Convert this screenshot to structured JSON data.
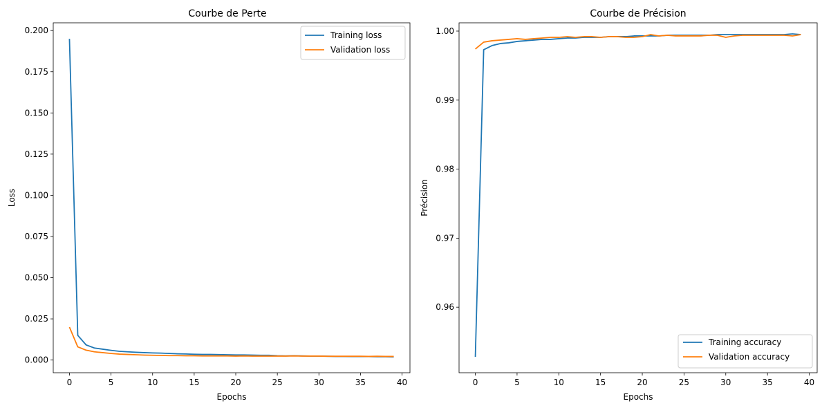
{
  "chart_data": [
    {
      "type": "line",
      "title": "Courbe de Perte",
      "xlabel": "Epochs",
      "ylabel": "Loss",
      "xlim": [
        -1.95,
        40.95
      ],
      "ylim": [
        -0.0077,
        0.2047
      ],
      "xticks": [
        0,
        5,
        10,
        15,
        20,
        25,
        30,
        35,
        40
      ],
      "yticks": [
        0.0,
        0.025,
        0.05,
        0.075,
        0.1,
        0.125,
        0.15,
        0.175,
        0.2
      ],
      "ytick_labels": [
        "0.000",
        "0.025",
        "0.050",
        "0.075",
        "0.100",
        "0.125",
        "0.150",
        "0.175",
        "0.200"
      ],
      "grid": false,
      "legend": "top-right",
      "series": [
        {
          "name": "Training loss",
          "color": "#1f77b4",
          "values": [
            0.195,
            0.015,
            0.0092,
            0.0073,
            0.0066,
            0.0059,
            0.0053,
            0.005,
            0.0047,
            0.0045,
            0.0043,
            0.0042,
            0.004,
            0.0038,
            0.0037,
            0.0035,
            0.0034,
            0.0034,
            0.0033,
            0.0032,
            0.0031,
            0.0031,
            0.003,
            0.0029,
            0.0029,
            0.0026,
            0.0025,
            0.0026,
            0.0025,
            0.0024,
            0.0024,
            0.0023,
            0.0022,
            0.0022,
            0.0021,
            0.0021,
            0.0021,
            0.002,
            0.002,
            0.0019
          ]
        },
        {
          "name": "Validation loss",
          "color": "#ff7f0e",
          "values": [
            0.02,
            0.008,
            0.006,
            0.005,
            0.0045,
            0.004,
            0.0036,
            0.0034,
            0.0032,
            0.003,
            0.0029,
            0.0028,
            0.0027,
            0.0027,
            0.0026,
            0.0026,
            0.0025,
            0.0025,
            0.0025,
            0.0025,
            0.0024,
            0.0025,
            0.0024,
            0.0024,
            0.0024,
            0.0024,
            0.0024,
            0.0025,
            0.0024,
            0.0024,
            0.0024,
            0.0023,
            0.0023,
            0.0023,
            0.0023,
            0.0023,
            0.0022,
            0.0023,
            0.0022,
            0.0022
          ]
        }
      ]
    },
    {
      "type": "line",
      "title": "Courbe de Précision",
      "xlabel": "Epochs",
      "ylabel": "Précision",
      "xlim": [
        -1.95,
        40.95
      ],
      "ylim": [
        0.9505,
        1.0012
      ],
      "xticks": [
        0,
        5,
        10,
        15,
        20,
        25,
        30,
        35,
        40
      ],
      "yticks": [
        0.96,
        0.97,
        0.98,
        0.99,
        1.0
      ],
      "ytick_labels": [
        "0.96",
        "0.97",
        "0.98",
        "0.99",
        "1.00"
      ],
      "grid": false,
      "legend": "bottom-right",
      "series": [
        {
          "name": "Training accuracy",
          "color": "#1f77b4",
          "values": [
            0.9528,
            0.9973,
            0.9979,
            0.9982,
            0.9983,
            0.9985,
            0.9986,
            0.9987,
            0.9988,
            0.9988,
            0.9989,
            0.999,
            0.999,
            0.9991,
            0.9991,
            0.9991,
            0.9992,
            0.9992,
            0.9992,
            0.9993,
            0.9993,
            0.9993,
            0.9993,
            0.9994,
            0.9994,
            0.9994,
            0.9994,
            0.9994,
            0.9994,
            0.9995,
            0.9995,
            0.9995,
            0.9995,
            0.9995,
            0.9995,
            0.9995,
            0.9995,
            0.9995,
            0.9996,
            0.9995
          ]
        },
        {
          "name": "Validation accuracy",
          "color": "#ff7f0e",
          "values": [
            0.9974,
            0.9984,
            0.9986,
            0.9987,
            0.9988,
            0.9989,
            0.9988,
            0.9989,
            0.999,
            0.9991,
            0.9991,
            0.9992,
            0.9991,
            0.9992,
            0.9992,
            0.9991,
            0.9992,
            0.9992,
            0.9991,
            0.9991,
            0.9992,
            0.9995,
            0.9993,
            0.9994,
            0.9993,
            0.9993,
            0.9993,
            0.9993,
            0.9994,
            0.9994,
            0.9991,
            0.9993,
            0.9994,
            0.9994,
            0.9994,
            0.9994,
            0.9994,
            0.9994,
            0.9993,
            0.9995
          ]
        }
      ]
    }
  ]
}
